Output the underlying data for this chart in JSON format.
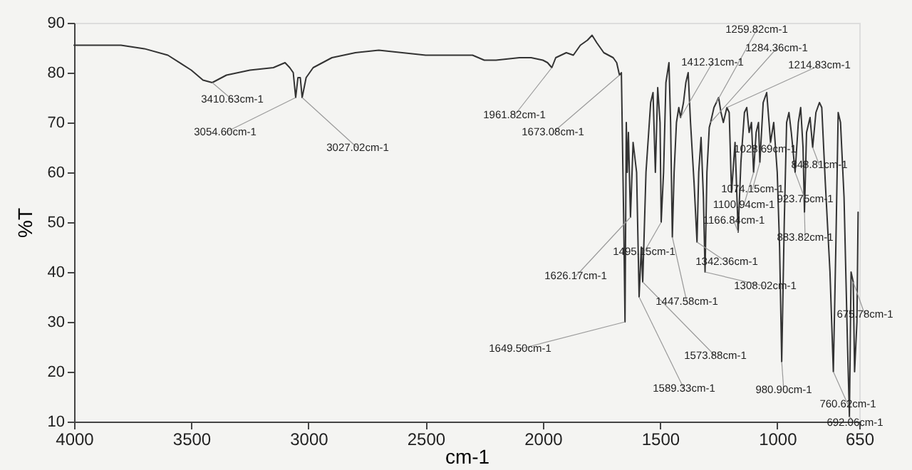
{
  "chart_data": {
    "type": "line",
    "xlabel": "cm-1",
    "ylabel": "%T",
    "xlim": [
      4000,
      650
    ],
    "xticks": [
      4000,
      3500,
      3000,
      2500,
      2000,
      1500,
      1000,
      650
    ],
    "ylim": [
      10,
      90
    ],
    "yticks": [
      10,
      20,
      30,
      40,
      50,
      60,
      70,
      80,
      90
    ],
    "grid": false,
    "marker": "none",
    "line_style": "solid",
    "series": [
      {
        "color": "#333333",
        "x": [
          4000,
          3900,
          3800,
          3700,
          3600,
          3500,
          3450,
          3410.63,
          3350,
          3250,
          3150,
          3100,
          3080,
          3065,
          3054.6,
          3045,
          3035,
          3027.02,
          3010,
          2980,
          2900,
          2800,
          2700,
          2600,
          2500,
          2400,
          2300,
          2250,
          2200,
          2100,
          2050,
          2000,
          1980,
          1961.82,
          1945,
          1900,
          1870,
          1840,
          1810,
          1790,
          1770,
          1740,
          1700,
          1685,
          1673.08,
          1665,
          1655,
          1649.5,
          1644,
          1640,
          1635,
          1626.17,
          1615,
          1600,
          1589.33,
          1580,
          1573.88,
          1560,
          1540,
          1530,
          1520,
          1510,
          1500,
          1495.15,
          1485,
          1475,
          1462,
          1455,
          1447.58,
          1440,
          1430,
          1420,
          1412.31,
          1400,
          1390,
          1380,
          1370,
          1355,
          1342.36,
          1335,
          1325,
          1315,
          1308.02,
          1300,
          1290,
          1284.36,
          1270,
          1259.82,
          1250,
          1240,
          1230,
          1214.83,
          1205,
          1195,
          1180,
          1166.84,
          1155,
          1140,
          1130,
          1120,
          1110,
          1100.94,
          1090,
          1080,
          1074.15,
          1060,
          1045,
          1035,
          1028.69,
          1015,
          1000,
          990,
          980.9,
          970,
          960,
          950,
          940,
          923.75,
          910,
          900,
          890,
          883.82,
          875,
          860,
          848.81,
          835,
          820,
          810,
          795,
          775,
          760.62,
          750,
          740,
          730,
          715,
          700,
          692.06,
          685,
          675.78,
          670,
          660,
          655
        ],
        "values": [
          85.5,
          85.5,
          85.5,
          84.8,
          83.5,
          80.5,
          78.5,
          78,
          79.5,
          80.5,
          81,
          82,
          81,
          80,
          75,
          79,
          79,
          75,
          79,
          81,
          83,
          84,
          84.5,
          84,
          83.5,
          83.5,
          83.5,
          82.5,
          82.5,
          83,
          83,
          82.5,
          82,
          81,
          83,
          84,
          83.5,
          85.5,
          86.5,
          87.5,
          86,
          84,
          83,
          82,
          79.5,
          80,
          50,
          30,
          70,
          60,
          68,
          51,
          66,
          60,
          35,
          45,
          38,
          60,
          74,
          76,
          60,
          77,
          70,
          50,
          60,
          78,
          82,
          70,
          47,
          60,
          70,
          73,
          71,
          74,
          78,
          80,
          70,
          58,
          46,
          60,
          67,
          55,
          40,
          60,
          69,
          70,
          73,
          74,
          75,
          72,
          70,
          73,
          72,
          56,
          66,
          48,
          62,
          72,
          73,
          68,
          70,
          60,
          68,
          70,
          62,
          74,
          76,
          70,
          66,
          70,
          60,
          45,
          22,
          50,
          70,
          72,
          68,
          60,
          70,
          73,
          65,
          52,
          68,
          71,
          65,
          72,
          74,
          73,
          58,
          40,
          20,
          45,
          72,
          70,
          55,
          25,
          11,
          40,
          38,
          20,
          30,
          52
        ]
      }
    ],
    "annotations": [
      {
        "text": "3410.63cm-1",
        "x": 3410.63,
        "y": 78
      },
      {
        "text": "3054.60cm-1",
        "x": 3054.6,
        "y": 75
      },
      {
        "text": "3027.02cm-1",
        "x": 3027.02,
        "y": 75
      },
      {
        "text": "1961.82cm-1",
        "x": 1961.82,
        "y": 81
      },
      {
        "text": "1673.08cm-1",
        "x": 1673.08,
        "y": 79.5
      },
      {
        "text": "1626.17cm-1",
        "x": 1626.17,
        "y": 51
      },
      {
        "text": "1649.50cm-1",
        "x": 1649.5,
        "y": 30
      },
      {
        "text": "1589.33cm-1",
        "x": 1589.33,
        "y": 35
      },
      {
        "text": "1573.88cm-1",
        "x": 1573.88,
        "y": 38
      },
      {
        "text": "1495.15cm-1",
        "x": 1495.15,
        "y": 50
      },
      {
        "text": "1447.58cm-1",
        "x": 1447.58,
        "y": 47
      },
      {
        "text": "1412.31cm-1",
        "x": 1412.31,
        "y": 71
      },
      {
        "text": "1342.36cm-1",
        "x": 1342.36,
        "y": 46
      },
      {
        "text": "1308.02cm-1",
        "x": 1308.02,
        "y": 40
      },
      {
        "text": "1284.36cm-1",
        "x": 1284.36,
        "y": 70
      },
      {
        "text": "1259.82cm-1",
        "x": 1259.82,
        "y": 74
      },
      {
        "text": "1214.83cm-1",
        "x": 1214.83,
        "y": 73
      },
      {
        "text": "1166.84cm-1",
        "x": 1166.84,
        "y": 48
      },
      {
        "text": "1100.94cm-1",
        "x": 1100.94,
        "y": 60
      },
      {
        "text": "1074.15cm-1",
        "x": 1074.15,
        "y": 62
      },
      {
        "text": "1028.69cm-1",
        "x": 1028.69,
        "y": 66
      },
      {
        "text": "980.90cm-1",
        "x": 980.9,
        "y": 22
      },
      {
        "text": "923.75cm-1",
        "x": 923.75,
        "y": 60
      },
      {
        "text": "883.82cm-1",
        "x": 883.82,
        "y": 52
      },
      {
        "text": "848.81cm-1",
        "x": 848.81,
        "y": 65
      },
      {
        "text": "760.62cm-1",
        "x": 760.62,
        "y": 20
      },
      {
        "text": "675.78cm-1",
        "x": 675.78,
        "y": 38
      },
      {
        "text": "692.06cm-1",
        "x": 692.06,
        "y": 11
      }
    ]
  }
}
